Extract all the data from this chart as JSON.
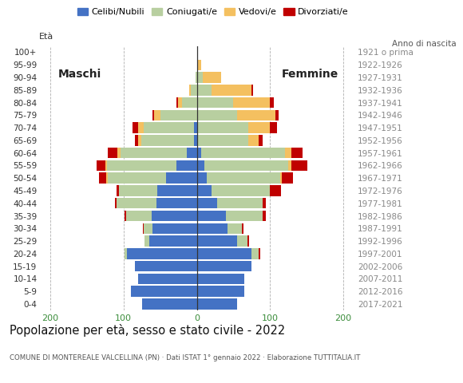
{
  "age_groups": [
    "0-4",
    "5-9",
    "10-14",
    "15-19",
    "20-24",
    "25-29",
    "30-34",
    "35-39",
    "40-44",
    "45-49",
    "50-54",
    "55-59",
    "60-64",
    "65-69",
    "70-74",
    "75-79",
    "80-84",
    "85-89",
    "90-94",
    "95-99",
    "100+"
  ],
  "birth_years": [
    "2017-2021",
    "2012-2016",
    "2007-2011",
    "2002-2006",
    "1997-2001",
    "1992-1996",
    "1987-1991",
    "1982-1986",
    "1977-1981",
    "1972-1976",
    "1967-1971",
    "1962-1966",
    "1957-1961",
    "1952-1956",
    "1947-1951",
    "1942-1946",
    "1937-1941",
    "1932-1936",
    "1927-1931",
    "1922-1926",
    "1921 o prima"
  ],
  "colors": {
    "celibe": "#4472c4",
    "coniugato": "#b8cfa0",
    "vedovo": "#f4c060",
    "divorziato": "#c00000"
  },
  "maschi": {
    "celibe": [
      75,
      90,
      80,
      85,
      95,
      65,
      60,
      62,
      55,
      54,
      42,
      28,
      14,
      4,
      4,
      0,
      0,
      0,
      0,
      0,
      0
    ],
    "coniugato": [
      0,
      0,
      0,
      0,
      4,
      6,
      12,
      35,
      55,
      52,
      80,
      95,
      90,
      72,
      68,
      50,
      20,
      8,
      2,
      0,
      0
    ],
    "vedovo": [
      0,
      0,
      0,
      0,
      0,
      0,
      0,
      0,
      0,
      0,
      2,
      2,
      4,
      4,
      8,
      8,
      6,
      2,
      0,
      0,
      0
    ],
    "divorziato": [
      0,
      0,
      0,
      0,
      0,
      0,
      2,
      2,
      2,
      4,
      10,
      12,
      14,
      5,
      8,
      2,
      2,
      0,
      0,
      0,
      0
    ]
  },
  "femmine": {
    "celibe": [
      55,
      65,
      65,
      75,
      75,
      55,
      42,
      40,
      28,
      20,
      14,
      10,
      6,
      0,
      0,
      0,
      0,
      0,
      0,
      0,
      0
    ],
    "coniugato": [
      0,
      0,
      0,
      0,
      10,
      14,
      20,
      50,
      62,
      80,
      100,
      115,
      115,
      70,
      70,
      55,
      50,
      20,
      8,
      2,
      0
    ],
    "vedovo": [
      0,
      0,
      0,
      0,
      0,
      0,
      0,
      0,
      0,
      0,
      2,
      4,
      8,
      15,
      30,
      52,
      50,
      55,
      25,
      4,
      2
    ],
    "divorziato": [
      0,
      0,
      0,
      0,
      2,
      2,
      2,
      4,
      4,
      15,
      15,
      22,
      15,
      5,
      10,
      5,
      5,
      2,
      0,
      0,
      0
    ]
  },
  "title": "Popolazione per età, sesso e stato civile - 2022",
  "subtitle": "COMUNE DI MONTEREALE VALCELLINA (PN) · Dati ISTAT 1° gennaio 2022 · Elaborazione TUTTITALIA.IT",
  "xlim": 215,
  "legend_labels": [
    "Celibi/Nubili",
    "Coniugati/e",
    "Vedovi/e",
    "Divorziati/e"
  ],
  "label_maschi": "Maschi",
  "label_femmine": "Femmine",
  "label_eta": "Età",
  "label_anno": "Anno di nascita",
  "bg_color": "#ffffff",
  "grid_color": "#b0b0b0",
  "bar_height": 0.85
}
